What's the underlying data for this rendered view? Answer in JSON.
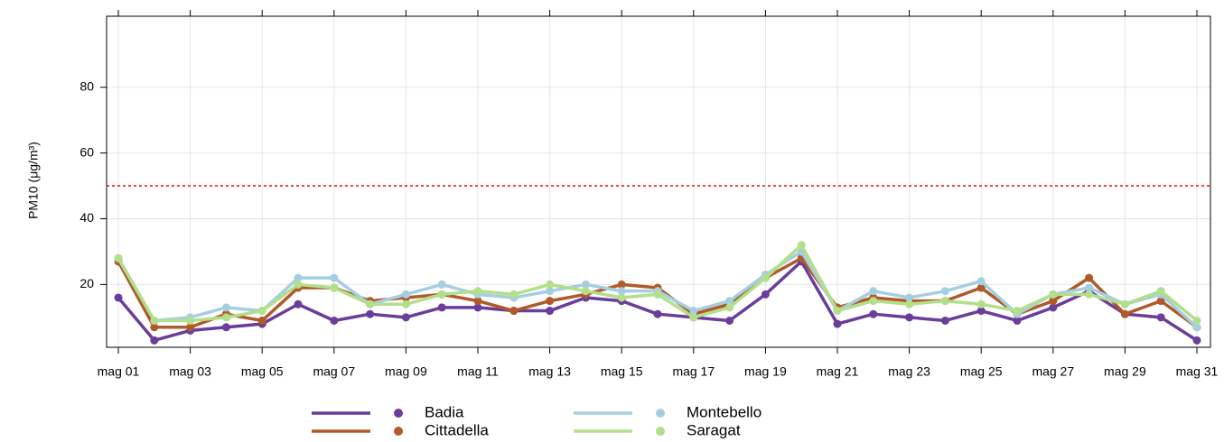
{
  "chart_data": {
    "type": "line",
    "ylabel": "PM10 (μg/m³)",
    "categories": [
      "mag 01",
      null,
      "mag 03",
      null,
      "mag 05",
      null,
      "mag 07",
      null,
      "mag 09",
      null,
      "mag 11",
      null,
      "mag 13",
      null,
      "mag 15",
      null,
      "mag 17",
      null,
      "mag 19",
      null,
      "mag 21",
      null,
      "mag 23",
      null,
      "mag 25",
      null,
      "mag 27",
      null,
      "mag 29",
      null,
      "mag 31"
    ],
    "series": [
      {
        "name": "Badia",
        "color": "#6a3d9a",
        "values": [
          16,
          3,
          6,
          7,
          8,
          14,
          9,
          11,
          10,
          13,
          13,
          12,
          12,
          16,
          15,
          11,
          10,
          9,
          17,
          27,
          8,
          11,
          10,
          9,
          12,
          9,
          13,
          18,
          11,
          10,
          3
        ]
      },
      {
        "name": "Cittadella",
        "color": "#b15928",
        "values": [
          27,
          7,
          7,
          11,
          9,
          19,
          19,
          15,
          16,
          17,
          15,
          12,
          15,
          17,
          20,
          19,
          11,
          14,
          22,
          28,
          13,
          16,
          15,
          15,
          19,
          11,
          15,
          22,
          11,
          15,
          7
        ]
      },
      {
        "name": "Montebello",
        "color": "#a6cee3",
        "values": [
          28,
          9,
          10,
          13,
          12,
          22,
          22,
          14,
          17,
          20,
          17,
          16,
          18,
          20,
          18,
          18,
          12,
          15,
          23,
          30,
          12,
          18,
          16,
          18,
          21,
          11,
          17,
          19,
          14,
          17,
          7
        ]
      },
      {
        "name": "Saragat",
        "color": "#b2df8a",
        "values": [
          28,
          9,
          9,
          10,
          12,
          20,
          19,
          14,
          14,
          17,
          18,
          17,
          20,
          18,
          16,
          17,
          10,
          13,
          22,
          32,
          12,
          15,
          14,
          15,
          14,
          12,
          17,
          17,
          14,
          18,
          9
        ]
      }
    ],
    "ylim": [
      0.9,
      101.6
    ],
    "yticks": [
      20,
      40,
      60,
      80
    ],
    "grid": true,
    "reference_line": {
      "value": 50,
      "color": "#ff0000"
    },
    "legend": "bottom"
  }
}
